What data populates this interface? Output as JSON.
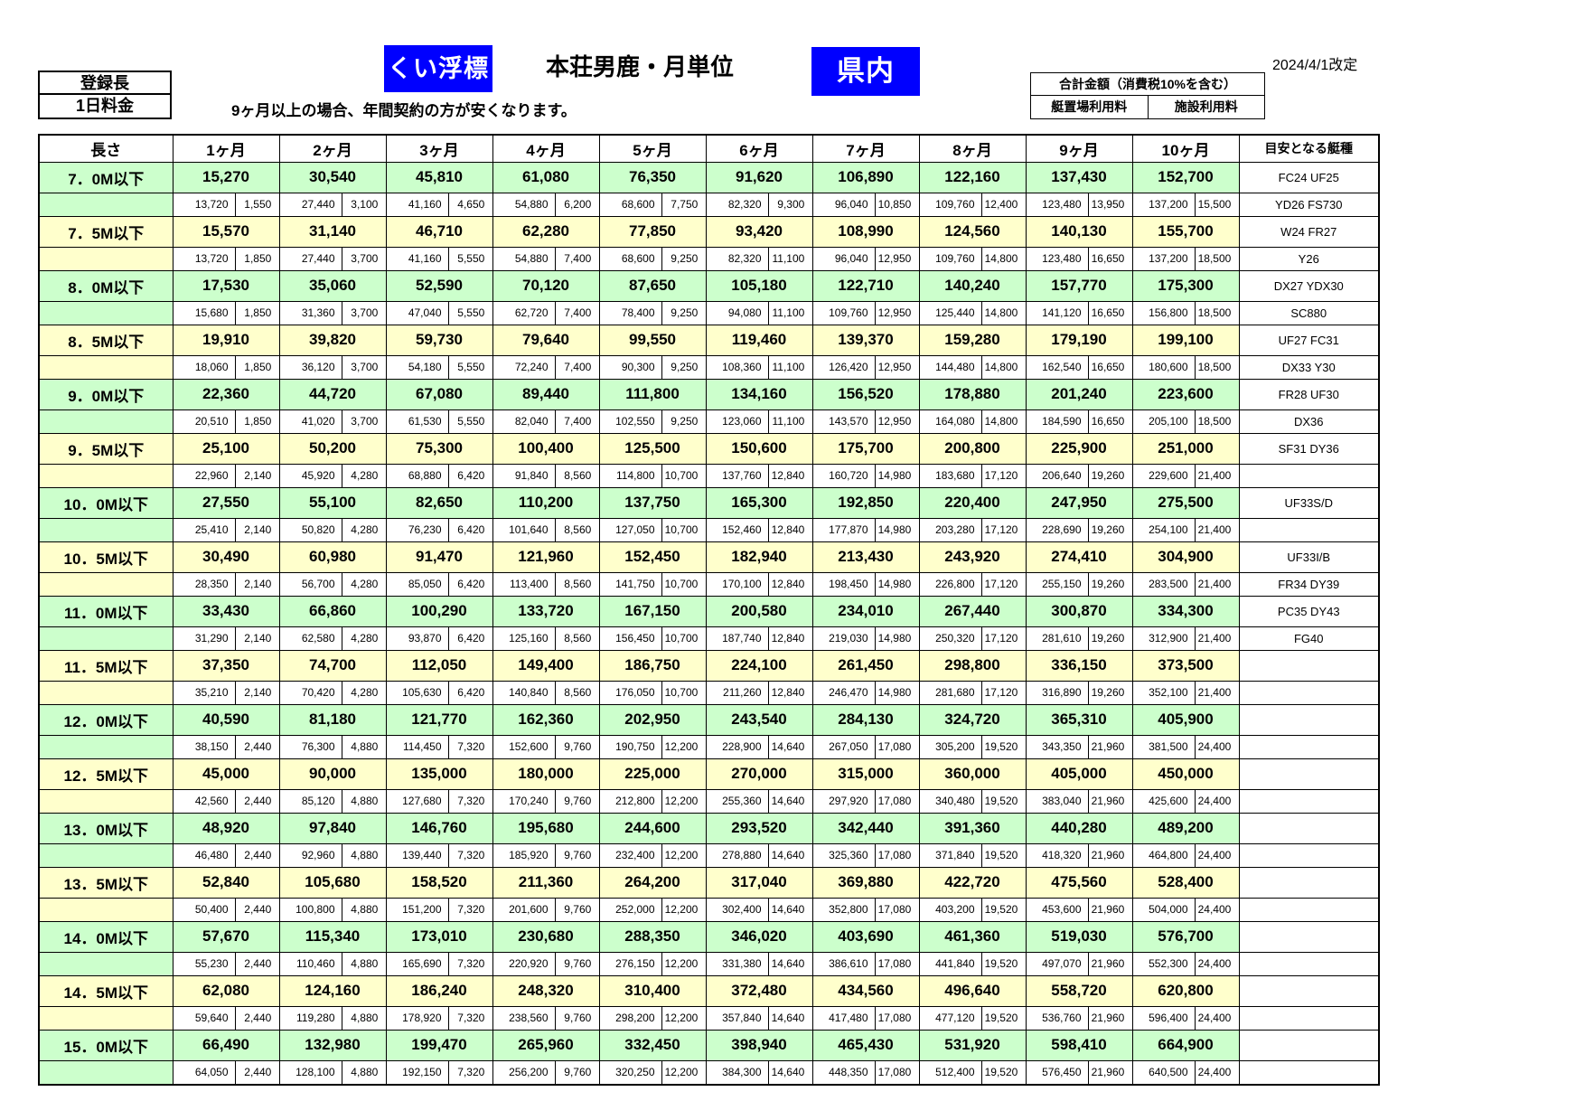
{
  "header": {
    "registered_length": "登録長",
    "daily_fee": "1日料金",
    "badge_left": "くい浮標",
    "title": "本荘男鹿・月単位",
    "badge_right": "県内",
    "revision_date": "2024/4/1改定",
    "note": "9ヶ月以上の場合、年間契約の方が安くなります。",
    "total_box": {
      "title": "合計金額（消費税10%を含む）",
      "left": "艇置場利用料",
      "right": "施設利用料"
    },
    "colors": {
      "badge_blue": "#0000ff",
      "row_green": "#ccffcc",
      "row_yellow": "#ffffcc"
    }
  },
  "table": {
    "length_header": "長さ",
    "month_headers": [
      "1ヶ月",
      "2ヶ月",
      "3ヶ月",
      "4ヶ月",
      "5ヶ月",
      "6ヶ月",
      "7ヶ月",
      "8ヶ月",
      "9ヶ月",
      "10ヶ月"
    ],
    "boat_type_header": "目安となる艇種",
    "groups": [
      {
        "length": "7．0M以下",
        "color": "green",
        "totals": [
          "15,270",
          "30,540",
          "45,810",
          "61,080",
          "76,350",
          "91,620",
          "106,890",
          "122,160",
          "137,430",
          "152,700"
        ],
        "berth_fees": [
          "13,720",
          "27,440",
          "41,160",
          "54,880",
          "68,600",
          "82,320",
          "96,040",
          "109,760",
          "123,480",
          "137,200"
        ],
        "facility_fees": [
          "1,550",
          "3,100",
          "4,650",
          "6,200",
          "7,750",
          "9,300",
          "10,850",
          "12,400",
          "13,950",
          "15,500"
        ],
        "boat_types": [
          "FC24  UF25",
          "YD26  FS730"
        ]
      },
      {
        "length": "7．5M以下",
        "color": "yellow",
        "totals": [
          "15,570",
          "31,140",
          "46,710",
          "62,280",
          "77,850",
          "93,420",
          "108,990",
          "124,560",
          "140,130",
          "155,700"
        ],
        "berth_fees": [
          "13,720",
          "27,440",
          "41,160",
          "54,880",
          "68,600",
          "82,320",
          "96,040",
          "109,760",
          "123,480",
          "137,200"
        ],
        "facility_fees": [
          "1,850",
          "3,700",
          "5,550",
          "7,400",
          "9,250",
          "11,100",
          "12,950",
          "14,800",
          "16,650",
          "18,500"
        ],
        "boat_types": [
          "W24  FR27",
          "Y26"
        ]
      },
      {
        "length": "8．0M以下",
        "color": "green",
        "totals": [
          "17,530",
          "35,060",
          "52,590",
          "70,120",
          "87,650",
          "105,180",
          "122,710",
          "140,240",
          "157,770",
          "175,300"
        ],
        "berth_fees": [
          "15,680",
          "31,360",
          "47,040",
          "62,720",
          "78,400",
          "94,080",
          "109,760",
          "125,440",
          "141,120",
          "156,800"
        ],
        "facility_fees": [
          "1,850",
          "3,700",
          "5,550",
          "7,400",
          "9,250",
          "11,100",
          "12,950",
          "14,800",
          "16,650",
          "18,500"
        ],
        "boat_types": [
          "DX27  YDX30",
          "SC880"
        ]
      },
      {
        "length": "8．5M以下",
        "color": "yellow",
        "totals": [
          "19,910",
          "39,820",
          "59,730",
          "79,640",
          "99,550",
          "119,460",
          "139,370",
          "159,280",
          "179,190",
          "199,100"
        ],
        "berth_fees": [
          "18,060",
          "36,120",
          "54,180",
          "72,240",
          "90,300",
          "108,360",
          "126,420",
          "144,480",
          "162,540",
          "180,600"
        ],
        "facility_fees": [
          "1,850",
          "3,700",
          "5,550",
          "7,400",
          "9,250",
          "11,100",
          "12,950",
          "14,800",
          "16,650",
          "18,500"
        ],
        "boat_types": [
          "UF27  FC31",
          "DX33  Y30"
        ]
      },
      {
        "length": "9．0M以下",
        "color": "green",
        "totals": [
          "22,360",
          "44,720",
          "67,080",
          "89,440",
          "111,800",
          "134,160",
          "156,520",
          "178,880",
          "201,240",
          "223,600"
        ],
        "berth_fees": [
          "20,510",
          "41,020",
          "61,530",
          "82,040",
          "102,550",
          "123,060",
          "143,570",
          "164,080",
          "184,590",
          "205,100"
        ],
        "facility_fees": [
          "1,850",
          "3,700",
          "5,550",
          "7,400",
          "9,250",
          "11,100",
          "12,950",
          "14,800",
          "16,650",
          "18,500"
        ],
        "boat_types": [
          "FR28  UF30",
          "DX36"
        ]
      },
      {
        "length": "9．5M以下",
        "color": "yellow",
        "totals": [
          "25,100",
          "50,200",
          "75,300",
          "100,400",
          "125,500",
          "150,600",
          "175,700",
          "200,800",
          "225,900",
          "251,000"
        ],
        "berth_fees": [
          "22,960",
          "45,920",
          "68,880",
          "91,840",
          "114,800",
          "137,760",
          "160,720",
          "183,680",
          "206,640",
          "229,600"
        ],
        "facility_fees": [
          "2,140",
          "4,280",
          "6,420",
          "8,560",
          "10,700",
          "12,840",
          "14,980",
          "17,120",
          "19,260",
          "21,400"
        ],
        "boat_types": [
          "SF31  DY36",
          ""
        ]
      },
      {
        "length": "10．0M以下",
        "color": "green",
        "totals": [
          "27,550",
          "55,100",
          "82,650",
          "110,200",
          "137,750",
          "165,300",
          "192,850",
          "220,400",
          "247,950",
          "275,500"
        ],
        "berth_fees": [
          "25,410",
          "50,820",
          "76,230",
          "101,640",
          "127,050",
          "152,460",
          "177,870",
          "203,280",
          "228,690",
          "254,100"
        ],
        "facility_fees": [
          "2,140",
          "4,280",
          "6,420",
          "8,560",
          "10,700",
          "12,840",
          "14,980",
          "17,120",
          "19,260",
          "21,400"
        ],
        "boat_types": [
          "UF33S/D",
          ""
        ]
      },
      {
        "length": "10．5M以下",
        "color": "yellow",
        "totals": [
          "30,490",
          "60,980",
          "91,470",
          "121,960",
          "152,450",
          "182,940",
          "213,430",
          "243,920",
          "274,410",
          "304,900"
        ],
        "berth_fees": [
          "28,350",
          "56,700",
          "85,050",
          "113,400",
          "141,750",
          "170,100",
          "198,450",
          "226,800",
          "255,150",
          "283,500"
        ],
        "facility_fees": [
          "2,140",
          "4,280",
          "6,420",
          "8,560",
          "10,700",
          "12,840",
          "14,980",
          "17,120",
          "19,260",
          "21,400"
        ],
        "boat_types": [
          "UF33I/B",
          "FR34  DY39"
        ]
      },
      {
        "length": "11．0M以下",
        "color": "green",
        "totals": [
          "33,430",
          "66,860",
          "100,290",
          "133,720",
          "167,150",
          "200,580",
          "234,010",
          "267,440",
          "300,870",
          "334,300"
        ],
        "berth_fees": [
          "31,290",
          "62,580",
          "93,870",
          "125,160",
          "156,450",
          "187,740",
          "219,030",
          "250,320",
          "281,610",
          "312,900"
        ],
        "facility_fees": [
          "2,140",
          "4,280",
          "6,420",
          "8,560",
          "10,700",
          "12,840",
          "14,980",
          "17,120",
          "19,260",
          "21,400"
        ],
        "boat_types": [
          "PC35  DY43",
          "FG40"
        ]
      },
      {
        "length": "11．5M以下",
        "color": "yellow",
        "totals": [
          "37,350",
          "74,700",
          "112,050",
          "149,400",
          "186,750",
          "224,100",
          "261,450",
          "298,800",
          "336,150",
          "373,500"
        ],
        "berth_fees": [
          "35,210",
          "70,420",
          "105,630",
          "140,840",
          "176,050",
          "211,260",
          "246,470",
          "281,680",
          "316,890",
          "352,100"
        ],
        "facility_fees": [
          "2,140",
          "4,280",
          "6,420",
          "8,560",
          "10,700",
          "12,840",
          "14,980",
          "17,120",
          "19,260",
          "21,400"
        ],
        "boat_types": [
          "",
          ""
        ]
      },
      {
        "length": "12．0M以下",
        "color": "green",
        "totals": [
          "40,590",
          "81,180",
          "121,770",
          "162,360",
          "202,950",
          "243,540",
          "284,130",
          "324,720",
          "365,310",
          "405,900"
        ],
        "berth_fees": [
          "38,150",
          "76,300",
          "114,450",
          "152,600",
          "190,750",
          "228,900",
          "267,050",
          "305,200",
          "343,350",
          "381,500"
        ],
        "facility_fees": [
          "2,440",
          "4,880",
          "7,320",
          "9,760",
          "12,200",
          "14,640",
          "17,080",
          "19,520",
          "21,960",
          "24,400"
        ],
        "boat_types": [
          "",
          ""
        ]
      },
      {
        "length": "12．5M以下",
        "color": "yellow",
        "totals": [
          "45,000",
          "90,000",
          "135,000",
          "180,000",
          "225,000",
          "270,000",
          "315,000",
          "360,000",
          "405,000",
          "450,000"
        ],
        "berth_fees": [
          "42,560",
          "85,120",
          "127,680",
          "170,240",
          "212,800",
          "255,360",
          "297,920",
          "340,480",
          "383,040",
          "425,600"
        ],
        "facility_fees": [
          "2,440",
          "4,880",
          "7,320",
          "9,760",
          "12,200",
          "14,640",
          "17,080",
          "19,520",
          "21,960",
          "24,400"
        ],
        "boat_types": [
          "",
          ""
        ]
      },
      {
        "length": "13．0M以下",
        "color": "green",
        "totals": [
          "48,920",
          "97,840",
          "146,760",
          "195,680",
          "244,600",
          "293,520",
          "342,440",
          "391,360",
          "440,280",
          "489,200"
        ],
        "berth_fees": [
          "46,480",
          "92,960",
          "139,440",
          "185,920",
          "232,400",
          "278,880",
          "325,360",
          "371,840",
          "418,320",
          "464,800"
        ],
        "facility_fees": [
          "2,440",
          "4,880",
          "7,320",
          "9,760",
          "12,200",
          "14,640",
          "17,080",
          "19,520",
          "21,960",
          "24,400"
        ],
        "boat_types": [
          "",
          ""
        ]
      },
      {
        "length": "13．5M以下",
        "color": "yellow",
        "totals": [
          "52,840",
          "105,680",
          "158,520",
          "211,360",
          "264,200",
          "317,040",
          "369,880",
          "422,720",
          "475,560",
          "528,400"
        ],
        "berth_fees": [
          "50,400",
          "100,800",
          "151,200",
          "201,600",
          "252,000",
          "302,400",
          "352,800",
          "403,200",
          "453,600",
          "504,000"
        ],
        "facility_fees": [
          "2,440",
          "4,880",
          "7,320",
          "9,760",
          "12,200",
          "14,640",
          "17,080",
          "19,520",
          "21,960",
          "24,400"
        ],
        "boat_types": [
          "",
          ""
        ]
      },
      {
        "length": "14．0M以下",
        "color": "green",
        "totals": [
          "57,670",
          "115,340",
          "173,010",
          "230,680",
          "288,350",
          "346,020",
          "403,690",
          "461,360",
          "519,030",
          "576,700"
        ],
        "berth_fees": [
          "55,230",
          "110,460",
          "165,690",
          "220,920",
          "276,150",
          "331,380",
          "386,610",
          "441,840",
          "497,070",
          "552,300"
        ],
        "facility_fees": [
          "2,440",
          "4,880",
          "7,320",
          "9,760",
          "12,200",
          "14,640",
          "17,080",
          "19,520",
          "21,960",
          "24,400"
        ],
        "boat_types": [
          "",
          ""
        ]
      },
      {
        "length": "14．5M以下",
        "color": "yellow",
        "totals": [
          "62,080",
          "124,160",
          "186,240",
          "248,320",
          "310,400",
          "372,480",
          "434,560",
          "496,640",
          "558,720",
          "620,800"
        ],
        "berth_fees": [
          "59,640",
          "119,280",
          "178,920",
          "238,560",
          "298,200",
          "357,840",
          "417,480",
          "477,120",
          "536,760",
          "596,400"
        ],
        "facility_fees": [
          "2,440",
          "4,880",
          "7,320",
          "9,760",
          "12,200",
          "14,640",
          "17,080",
          "19,520",
          "21,960",
          "24,400"
        ],
        "boat_types": [
          "",
          ""
        ]
      },
      {
        "length": "15．0M以下",
        "color": "green",
        "totals": [
          "66,490",
          "132,980",
          "199,470",
          "265,960",
          "332,450",
          "398,940",
          "465,430",
          "531,920",
          "598,410",
          "664,900"
        ],
        "berth_fees": [
          "64,050",
          "128,100",
          "192,150",
          "256,200",
          "320,250",
          "384,300",
          "448,350",
          "512,400",
          "576,450",
          "640,500"
        ],
        "facility_fees": [
          "2,440",
          "4,880",
          "7,320",
          "9,760",
          "12,200",
          "14,640",
          "17,080",
          "19,520",
          "21,960",
          "24,400"
        ],
        "boat_types": [
          "",
          ""
        ]
      }
    ]
  }
}
